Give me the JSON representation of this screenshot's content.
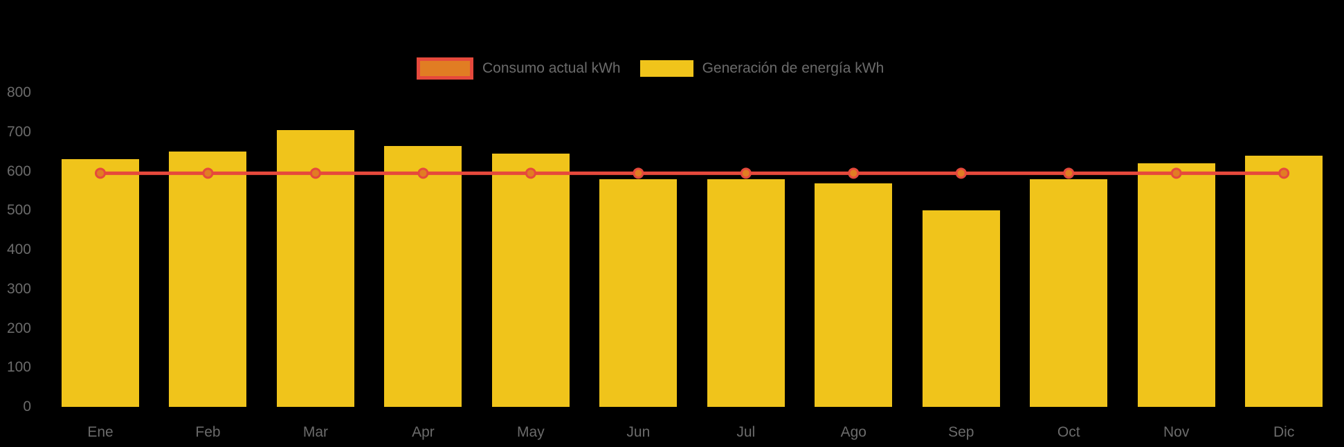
{
  "chart_data": {
    "type": "bar",
    "title": "",
    "categories": [
      "Ene",
      "Feb",
      "Mar",
      "Apr",
      "May",
      "Jun",
      "Jul",
      "Ago",
      "Sep",
      "Oct",
      "Nov",
      "Dic"
    ],
    "series": [
      {
        "name": "Consumo actual kWh",
        "type": "line",
        "color": "#E6493C",
        "marker_fill": "#E17D23",
        "values": [
          595,
          595,
          595,
          595,
          595,
          595,
          595,
          595,
          595,
          595,
          595,
          595
        ]
      },
      {
        "name": "Generación de energía kWh",
        "type": "bar",
        "color": "#F0C41B",
        "values": [
          630,
          650,
          705,
          665,
          645,
          580,
          580,
          570,
          500,
          580,
          620,
          640
        ]
      }
    ],
    "xlabel": "",
    "ylabel": "",
    "ylim": [
      0,
      800
    ],
    "y_ticks": [
      0,
      100,
      200,
      300,
      400,
      500,
      600,
      700,
      800
    ],
    "y_tick_labels": [
      "0",
      "100",
      "200",
      "300",
      "400",
      "500",
      "600",
      "700",
      "800"
    ],
    "grid": false,
    "legend_position": "top-center",
    "background": "#000000",
    "text_color": "#6B6B6B"
  }
}
